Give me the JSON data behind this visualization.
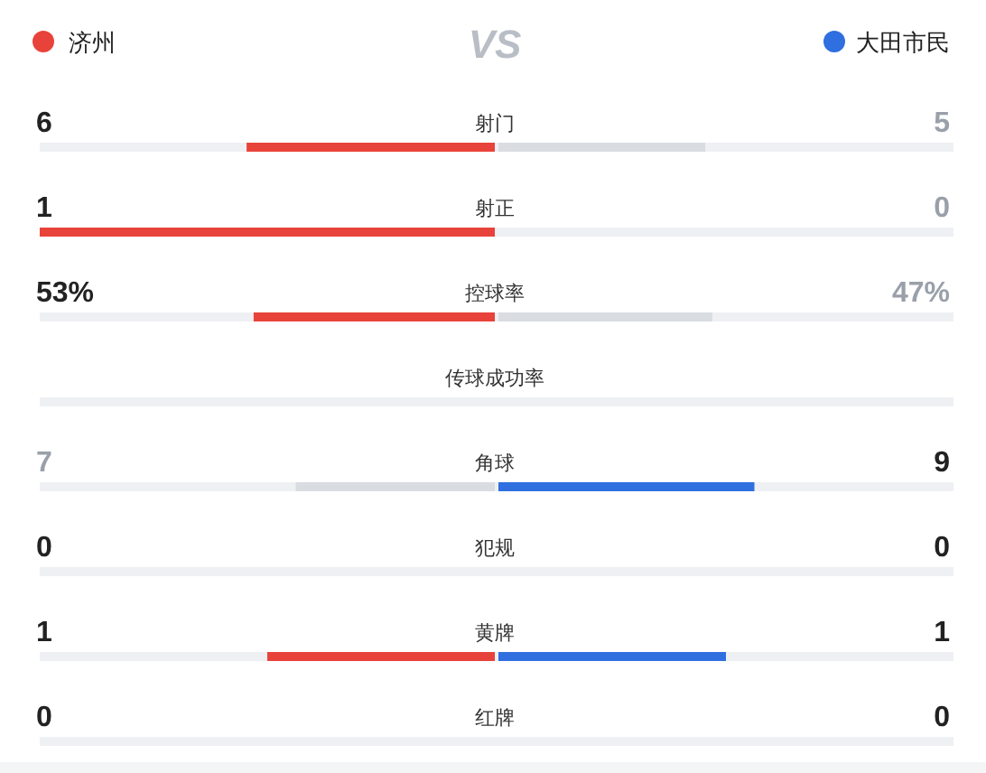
{
  "chart_data": {
    "type": "other",
    "legend": "top",
    "categories": [
      "射门",
      "射正",
      "控球率",
      "传球成功率",
      "角球",
      "犯规",
      "黄牌",
      "红牌"
    ],
    "annotations": [
      "VS"
    ],
    "series": [
      {
        "name": "济州",
        "color": "#e8433a",
        "values": [
          6,
          1,
          53,
          null,
          7,
          0,
          1,
          0
        ],
        "value_labels": [
          "6",
          "1",
          "53%",
          null,
          "7",
          "0",
          "1",
          "0"
        ],
        "colors": [
          "#e8433a",
          "#e8433a",
          "#e8433a",
          null,
          "#d9dce1",
          "#e8433a",
          "#e8433a",
          "#e8433a"
        ]
      },
      {
        "name": "大田市民",
        "color": "#2f6fdf",
        "values": [
          5,
          0,
          47,
          null,
          9,
          0,
          1,
          0
        ],
        "value_labels": [
          "5",
          "0",
          "47%",
          null,
          "9",
          "0",
          "1",
          "0"
        ],
        "colors": [
          "#d9dce1",
          "#2f6fdf",
          "#d9dce1",
          null,
          "#2f6fdf",
          "#2f6fdf",
          "#2f6fdf",
          "#2f6fdf"
        ]
      }
    ]
  }
}
